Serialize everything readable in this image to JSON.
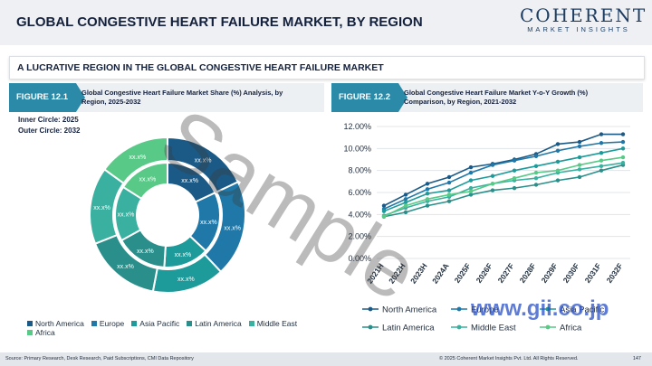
{
  "header": {
    "title": "GLOBAL CONGESTIVE HEART FAILURE MARKET, BY REGION"
  },
  "logo": {
    "main": "COHERENT",
    "sub": "MARKET INSIGHTS"
  },
  "section": {
    "title": "A LUCRATIVE REGION IN THE GLOBAL CONGESTIVE HEART FAILURE MARKET"
  },
  "figure1": {
    "tag": "FIGURE 12.1",
    "title_line1": "Global Congestive Heart Failure Market Share (%) Analysis, by",
    "title_line2": "Region, 2025-2032",
    "inner_note": "Inner Circle: 2025",
    "outer_note": "Outer Circle: 2032"
  },
  "figure2": {
    "tag": "FIGURE 12.2",
    "title_line1": "Global Congestive Heart Failure Market Y-o-Y Growth (%)",
    "title_line2": "Comparison, by Region, 2021-2032"
  },
  "colors": {
    "north_america": "#1b5a86",
    "europe": "#1f78a8",
    "asia_pacific": "#1d9a9a",
    "latin_america": "#2a8f8a",
    "middle_east": "#3ab0a0",
    "africa": "#59c987"
  },
  "chart_data": [
    {
      "type": "pie",
      "subtype": "double-donut",
      "categories": [
        "North America",
        "Europe",
        "Asia Pacific",
        "Latin America",
        "Middle East",
        "Africa"
      ],
      "series": [
        {
          "name": "2025",
          "values": [
            18,
            19,
            14,
            16,
            17,
            16
          ],
          "labels": [
            "xx.x%",
            "xx.x%",
            "xx.x%",
            "xx.x%",
            "xx.x%",
            "xx.x%"
          ]
        },
        {
          "name": "2032",
          "values": [
            18,
            20,
            15,
            16,
            16,
            15
          ],
          "labels": [
            "xx.x%",
            "xx.x%",
            "xx.x%",
            "xx.x%",
            "xx.x%",
            "xx.x%"
          ]
        }
      ],
      "legend": "bottom"
    },
    {
      "type": "line",
      "categories": [
        "2021H",
        "2022H",
        "2023H",
        "2024A",
        "2025F",
        "2026F",
        "2027F",
        "2028F",
        "2029F",
        "2030F",
        "2031F",
        "2032F"
      ],
      "ylim": [
        0,
        12
      ],
      "yticks": [
        "0.00%",
        "2.00%",
        "4.00%",
        "6.00%",
        "8.00%",
        "10.00%",
        "12.00%"
      ],
      "grid": true,
      "legend": "bottom",
      "series": [
        {
          "name": "North America",
          "values": [
            4.8,
            5.8,
            6.8,
            7.4,
            8.3,
            8.6,
            9.0,
            9.5,
            10.4,
            10.6,
            11.3,
            11.3
          ]
        },
        {
          "name": "Europe",
          "values": [
            4.5,
            5.4,
            6.3,
            6.9,
            7.8,
            8.5,
            8.9,
            9.3,
            9.8,
            10.2,
            10.5,
            10.6
          ]
        },
        {
          "name": "Asia Pacific",
          "values": [
            4.3,
            5.1,
            5.9,
            6.2,
            7.1,
            7.5,
            8.0,
            8.4,
            8.8,
            9.2,
            9.6,
            10.0
          ]
        },
        {
          "name": "Latin America",
          "values": [
            3.8,
            4.2,
            4.8,
            5.2,
            5.8,
            6.2,
            6.4,
            6.7,
            7.1,
            7.4,
            8.0,
            8.5
          ]
        },
        {
          "name": "Middle East",
          "values": [
            3.9,
            4.6,
            5.2,
            5.6,
            6.4,
            6.8,
            7.1,
            7.3,
            7.8,
            8.1,
            8.4,
            8.7
          ]
        },
        {
          "name": "Africa",
          "values": [
            3.8,
            4.8,
            5.4,
            5.8,
            6.1,
            6.8,
            7.3,
            7.8,
            8.0,
            8.5,
            8.9,
            9.2
          ]
        }
      ]
    }
  ],
  "watermarks": {
    "sample": "Sample",
    "site": "www.gii.co.jp"
  },
  "footer": {
    "source": "Source: Primary Research, Desk Research, Paid Subscriptions, CMI Data Repository",
    "copyright": "© 2025 Coherent Market Insights Pvt. Ltd. All Rights Reserved.",
    "page": "147"
  }
}
